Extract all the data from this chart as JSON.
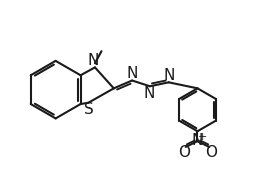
{
  "background_color": "#ffffff",
  "line_color": "#1a1a1a",
  "line_width": 1.5,
  "font_size": 9,
  "fig_width": 2.63,
  "fig_height": 1.95,
  "dpi": 100,
  "xlim": [
    0,
    10
  ],
  "ylim": [
    0,
    7
  ]
}
